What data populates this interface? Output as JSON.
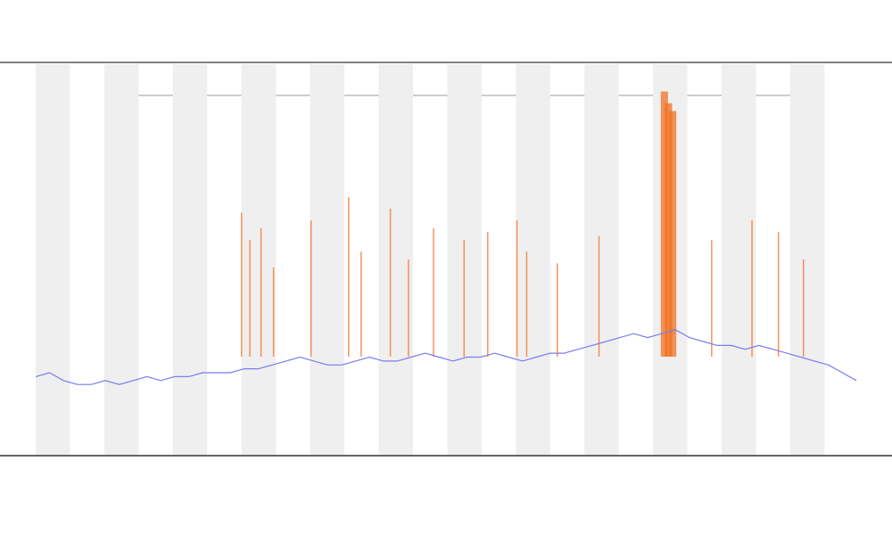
{
  "chart_data": {
    "type": "line",
    "x": [
      0,
      1,
      2,
      3,
      4,
      5,
      6,
      7,
      8,
      9,
      10,
      11,
      12,
      13,
      14,
      15,
      16,
      17,
      18,
      19,
      20,
      21,
      22,
      23,
      24,
      25,
      26,
      27,
      28,
      29,
      30,
      31,
      32,
      33,
      34,
      35,
      36,
      37,
      38,
      39,
      40,
      41,
      42,
      43,
      44,
      45,
      46,
      47,
      48,
      49,
      50,
      51,
      52,
      53,
      54,
      55,
      56,
      57,
      58,
      59
    ],
    "series": [
      {
        "color": "#7b7bf0",
        "values": [
          20,
          21,
          19,
          18,
          18,
          19,
          18,
          19,
          20,
          19,
          20,
          20,
          21,
          21,
          21,
          22,
          22,
          23,
          24,
          25,
          24,
          23,
          23,
          24,
          25,
          24,
          24,
          25,
          26,
          25,
          24,
          25,
          25,
          26,
          25,
          24,
          25,
          26,
          26,
          27,
          28,
          29,
          30,
          31,
          30,
          31,
          32,
          30,
          29,
          28,
          28,
          27,
          28,
          27,
          26,
          25,
          24,
          23,
          21,
          19
        ]
      }
    ],
    "events": {
      "color": "#f07020",
      "x": [
        14.8,
        15.4,
        16.2,
        17.1,
        19.8,
        22.5,
        23.4,
        25.5,
        26.8,
        28.6,
        30.8,
        32.5,
        34.6,
        35.3,
        37.5,
        40.5,
        45.2,
        45.5,
        45.8,
        48.6,
        51.5,
        53.4,
        55.2
      ],
      "values": [
        62,
        55,
        58,
        48,
        60,
        66,
        52,
        63,
        50,
        58,
        55,
        57,
        60,
        52,
        49,
        56,
        93,
        90,
        88,
        55,
        60,
        57,
        50
      ]
    },
    "xlim": [
      0,
      59
    ],
    "ylim": [
      0,
      100
    ]
  }
}
